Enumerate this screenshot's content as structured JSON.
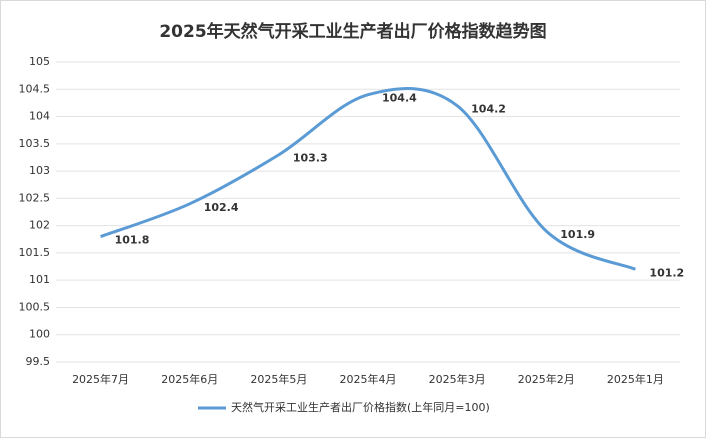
{
  "chart_data": {
    "type": "line",
    "title": "2025年天然气开采工业生产者出厂价格指数趋势图",
    "categories": [
      "2025年7月",
      "2025年6月",
      "2025年5月",
      "2025年4月",
      "2025年3月",
      "2025年2月",
      "2025年1月"
    ],
    "series": [
      {
        "name": "天然气开采工业生产者出厂价格指数(上年同月=100)",
        "color": "#5b9bd5",
        "values": [
          101.8,
          102.4,
          103.3,
          104.4,
          104.2,
          101.9,
          101.2
        ]
      }
    ],
    "ylim": [
      99.5,
      105
    ],
    "yticks": [
      99.5,
      100,
      100.5,
      101,
      101.5,
      102,
      102.5,
      103,
      103.5,
      104,
      104.5,
      105
    ],
    "grid": true,
    "legend": "bottom"
  }
}
